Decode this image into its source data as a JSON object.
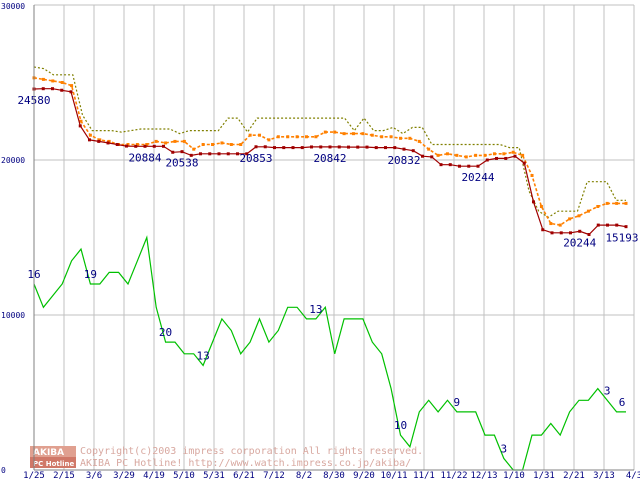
{
  "chart_data": {
    "type": "line",
    "title": "",
    "xlabel": "",
    "ylabel": "",
    "ylim": [
      0,
      30000
    ],
    "y_ticks": [
      0,
      10000,
      20000,
      30000
    ],
    "x_tick_labels": [
      "1/25",
      "2/15",
      "3/6",
      "3/29",
      "4/19",
      "5/10",
      "5/31",
      "6/21",
      "7/12",
      "8/2",
      "8/30",
      "9/20",
      "10/11",
      "11/1",
      "11/22",
      "12/13",
      "1/10",
      "1/31",
      "2/21",
      "3/13",
      "4/3"
    ],
    "series": [
      {
        "name": "max",
        "color": "#808000",
        "style": "dotted",
        "marker": false,
        "values": [
          26000,
          25900,
          25500,
          25500,
          25500,
          22900,
          21900,
          21900,
          21900,
          21800,
          21900,
          22000,
          22000,
          22000,
          22000,
          21700,
          21900,
          21900,
          21900,
          21900,
          22700,
          22700,
          21800,
          22700,
          22700,
          22700,
          22700,
          22700,
          22700,
          22700,
          22700,
          22700,
          22700,
          21900,
          22700,
          21900,
          21900,
          22100,
          21700,
          22100,
          22100,
          21000,
          21000,
          21000,
          21000,
          21000,
          21000,
          21000,
          21000,
          20800,
          20800,
          18000,
          16700,
          16300,
          16700,
          16700,
          16700,
          18600,
          18600,
          18600,
          17400,
          17400
        ]
      },
      {
        "name": "avg",
        "color": "#ff8000",
        "style": "dashed",
        "marker": true,
        "values": [
          25300,
          25200,
          25100,
          25000,
          24800,
          22500,
          21600,
          21300,
          21200,
          21000,
          21000,
          21000,
          21000,
          21200,
          21100,
          21200,
          21200,
          20700,
          21000,
          21000,
          21100,
          21000,
          21000,
          21600,
          21600,
          21300,
          21500,
          21500,
          21500,
          21500,
          21500,
          21800,
          21800,
          21700,
          21700,
          21700,
          21600,
          21500,
          21500,
          21400,
          21400,
          21200,
          20700,
          20300,
          20400,
          20300,
          20200,
          20300,
          20300,
          20400,
          20400,
          20500,
          20300,
          19000,
          17000,
          15900,
          15800,
          16200,
          16400,
          16700,
          17000,
          17200,
          17200,
          17200
        ]
      },
      {
        "name": "min",
        "color": "#a00000",
        "style": "solid",
        "marker": true,
        "values": [
          24580,
          24600,
          24600,
          24500,
          24400,
          22200,
          21300,
          21200,
          21100,
          21000,
          20900,
          20884,
          20884,
          20884,
          20884,
          20500,
          20538,
          20300,
          20400,
          20400,
          20400,
          20400,
          20400,
          20400,
          20853,
          20853,
          20800,
          20800,
          20800,
          20800,
          20842,
          20842,
          20842,
          20842,
          20832,
          20832,
          20832,
          20800,
          20800,
          20800,
          20700,
          20600,
          20244,
          20200,
          19700,
          19700,
          19600,
          19600,
          19600,
          20000,
          20100,
          20100,
          20244,
          19800,
          17300,
          15500,
          15300,
          15300,
          15300,
          15400,
          15193,
          15800,
          15800,
          15800,
          15700
        ]
      },
      {
        "name": "shops",
        "color": "#00c000",
        "style": "solid",
        "marker": false,
        "secondary_scale": true,
        "values": [
          16,
          14,
          15,
          16,
          18,
          19,
          16,
          16,
          17,
          17,
          16,
          18,
          20,
          14,
          11,
          11,
          10,
          10,
          9,
          11,
          13,
          12,
          10,
          11,
          13,
          11,
          12,
          14,
          14,
          13,
          13,
          14,
          10,
          13,
          13,
          13,
          11,
          10,
          7,
          3,
          2,
          5,
          6,
          5,
          6,
          5,
          5,
          5,
          3,
          3,
          1,
          0,
          0,
          3,
          3,
          4,
          3,
          5,
          6,
          6,
          7,
          6,
          5,
          5
        ]
      }
    ],
    "data_labels": [
      {
        "text": "24580",
        "series": "min",
        "x_index": 0,
        "place": "below"
      },
      {
        "text": "20884",
        "series": "min",
        "x_index": 12,
        "place": "below"
      },
      {
        "text": "20538",
        "series": "min",
        "x_index": 16,
        "place": "below"
      },
      {
        "text": "20853",
        "series": "min",
        "x_index": 24,
        "place": "below"
      },
      {
        "text": "20842",
        "series": "min",
        "x_index": 32,
        "place": "below"
      },
      {
        "text": "20832",
        "series": "min",
        "x_index": 40,
        "place": "below"
      },
      {
        "text": "20244",
        "series": "min",
        "x_index": 48,
        "place": "below"
      },
      {
        "text": "20244",
        "series": "min",
        "x_index": 59,
        "place": "below"
      },
      {
        "text": "15193",
        "series": "min",
        "x_index": 72,
        "place": "below"
      },
      {
        "text": "16",
        "series": "shops",
        "x_index": 0,
        "place": "above"
      },
      {
        "text": "19",
        "series": "shops",
        "x_index": 6,
        "place": "above"
      },
      {
        "text": "20",
        "series": "shops",
        "x_index": 14,
        "place": "above"
      },
      {
        "text": "13",
        "series": "shops",
        "x_index": 18,
        "place": "above"
      },
      {
        "text": "13",
        "series": "shops",
        "x_index": 30,
        "place": "above"
      },
      {
        "text": "10",
        "series": "shops",
        "x_index": 39,
        "place": "above"
      },
      {
        "text": "9",
        "series": "shops",
        "x_index": 45,
        "place": "above"
      },
      {
        "text": "3",
        "series": "shops",
        "x_index": 50,
        "place": "above"
      },
      {
        "text": "3",
        "series": "shops",
        "x_index": 61,
        "place": "above"
      },
      {
        "text": "6",
        "series": "shops",
        "x_index": 70,
        "place": "above"
      }
    ],
    "grid": true,
    "watermark_lines": [
      "Copyright(c)2003 impress corporation All rights reserved.",
      "AKIBA PC Hotline!  http://www.watch.impress.co.jp/akiba/"
    ],
    "logo": {
      "top": "AKIBA",
      "bottom": "PC Hotline"
    }
  }
}
